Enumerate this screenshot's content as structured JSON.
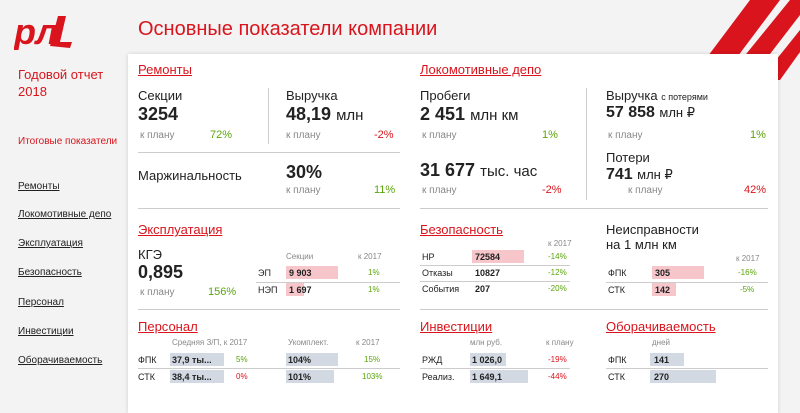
{
  "header": {
    "title": "Основные показатели компании"
  },
  "sidebar": {
    "title": "Годовой отчет 2018",
    "items": [
      {
        "label": "Итоговые показатели"
      },
      {
        "label": "Ремонты"
      },
      {
        "label": "Локомотивные депо"
      },
      {
        "label": "Эксплуатация"
      },
      {
        "label": "Безопасность"
      },
      {
        "label": "Персонал"
      },
      {
        "label": "Инвестиции"
      },
      {
        "label": "Оборачиваемость"
      }
    ]
  },
  "repairs": {
    "title": "Ремонты",
    "sections_label": "Секции",
    "sections_value": "3254",
    "sections_plan_label": "к плану",
    "sections_plan": "72%",
    "revenue_label": "Выручка",
    "revenue_value": "48,19",
    "revenue_unit": "млн",
    "revenue_plan_label": "к плану",
    "revenue_plan": "-2%",
    "margin_label": "Маржинальность",
    "margin_value": "30%",
    "margin_plan_label": "к плану",
    "margin_plan": "11%"
  },
  "depot": {
    "title": "Локомотивные депо",
    "mileage_label": "Пробеги",
    "mileage_value": "2 451",
    "mileage_unit": "млн км",
    "mileage_plan_label": "к плану",
    "mileage_plan": "1%",
    "hours_value": "31 677",
    "hours_unit": "тыс. час",
    "hours_plan_label": "к плану",
    "hours_plan": "-2%",
    "revenue_label": "Выручка",
    "revenue_suffix": "с потерями",
    "revenue_value": "57 858",
    "revenue_unit": "млн ₽",
    "revenue_plan_label": "к плану",
    "revenue_plan": "1%",
    "losses_label": "Потери",
    "losses_value": "741",
    "losses_unit": "млн ₽",
    "losses_plan_label": "к плану",
    "losses_plan": "42%"
  },
  "operation": {
    "title": "Эксплуатация",
    "kge_label": "КГЭ",
    "kge_value": "0,895",
    "kge_plan_label": "к плану",
    "kge_plan": "156%",
    "col_sections": "Секции",
    "col_2017": "к 2017",
    "rows": [
      {
        "name": "ЭП",
        "value": "9 903",
        "delta": "1%"
      },
      {
        "name": "НЭП",
        "value": "1 697",
        "delta": "1%"
      }
    ]
  },
  "safety": {
    "title": "Безопасность",
    "col_2017": "к 2017",
    "rows": [
      {
        "name": "НР",
        "value": "72584",
        "delta": "-14%"
      },
      {
        "name": "Отказы",
        "value": "10827",
        "delta": "-12%"
      },
      {
        "name": "События",
        "value": "207",
        "delta": "-20%"
      }
    ]
  },
  "faults": {
    "title_line1": "Неисправности",
    "title_line2": "на 1 млн км",
    "col_2017": "к 2017",
    "rows": [
      {
        "name": "ФПК",
        "value": "305",
        "delta": "-16%"
      },
      {
        "name": "СТК",
        "value": "142",
        "delta": "-5%"
      }
    ]
  },
  "personnel": {
    "title": "Персонал",
    "col_salary": "Средняя З/П, к 2017",
    "col_staff": "Укомплект.",
    "col_2017": "к 2017",
    "rows": [
      {
        "name": "ФПК",
        "salary": "37,9 ты...",
        "salary_delta": "5%",
        "staff": "104%",
        "staff_delta": "15%"
      },
      {
        "name": "СТК",
        "salary": "38,4 ты...",
        "salary_delta": "0%",
        "staff": "101%",
        "staff_delta": "103%"
      }
    ]
  },
  "investments": {
    "title": "Инвестиции",
    "col_rub": "млн руб.",
    "col_plan": "к плану",
    "rows": [
      {
        "name": "РЖД",
        "value": "1 026,0",
        "delta": "-19%"
      },
      {
        "name": "Реализ.",
        "value": "1 649,1",
        "delta": "-44%"
      }
    ]
  },
  "turnover": {
    "title": "Оборачиваемость",
    "col_days": "дней",
    "rows": [
      {
        "name": "ФПК",
        "value": "141"
      },
      {
        "name": "СТК",
        "value": "270"
      }
    ]
  },
  "colors": {
    "accent": "#d9141c",
    "positive": "#5aa50a",
    "bar_pink": "#f7c6cb",
    "bar_grey": "#d3d9e3"
  }
}
